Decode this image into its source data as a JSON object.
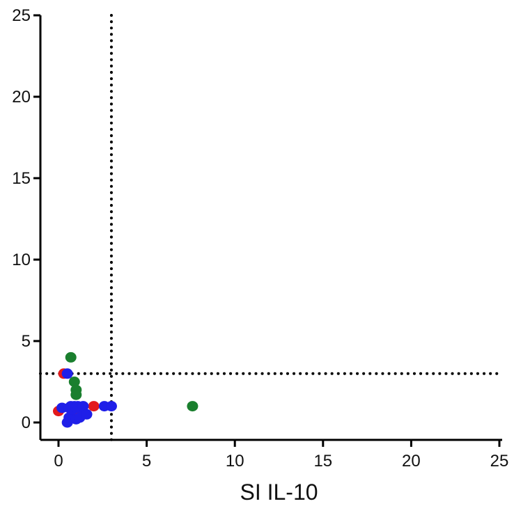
{
  "chart_data": {
    "type": "scatter",
    "title": "",
    "xlabel": "SI IL-10",
    "ylabel": "",
    "xlim": [
      0,
      25
    ],
    "ylim": [
      0,
      25
    ],
    "x_ticks": [
      "0",
      "5",
      "10",
      "15",
      "20",
      "25"
    ],
    "y_ticks": [
      "0",
      "5",
      "10",
      "15",
      "20",
      "25"
    ],
    "threshold_lines": {
      "x": 3,
      "y": 3,
      "style": "dotted"
    },
    "grid": false,
    "legend": "none",
    "series": [
      {
        "color": "#e31a1c",
        "points": [
          [
            0.0,
            0.7
          ],
          [
            0.3,
            3.0
          ],
          [
            0.8,
            0.6
          ],
          [
            1.0,
            0.5
          ],
          [
            2.0,
            1.0
          ]
        ]
      },
      {
        "color": "#1a7f2e",
        "points": [
          [
            0.7,
            4.0
          ],
          [
            0.9,
            2.5
          ],
          [
            1.0,
            2.0
          ],
          [
            1.0,
            1.7
          ],
          [
            7.6,
            1.0
          ]
        ]
      },
      {
        "color": "#1f1fe8",
        "points": [
          [
            0.2,
            0.9
          ],
          [
            0.5,
            3.0
          ],
          [
            0.5,
            0.0
          ],
          [
            0.6,
            0.3
          ],
          [
            0.6,
            0.9
          ],
          [
            0.7,
            1.0
          ],
          [
            0.8,
            0.8
          ],
          [
            0.9,
            1.0
          ],
          [
            1.0,
            0.2
          ],
          [
            1.0,
            0.9
          ],
          [
            1.1,
            1.0
          ],
          [
            1.2,
            0.3
          ],
          [
            1.3,
            0.9
          ],
          [
            1.4,
            1.0
          ],
          [
            1.6,
            0.5
          ],
          [
            2.6,
            1.0
          ],
          [
            3.0,
            1.0
          ]
        ]
      }
    ]
  }
}
